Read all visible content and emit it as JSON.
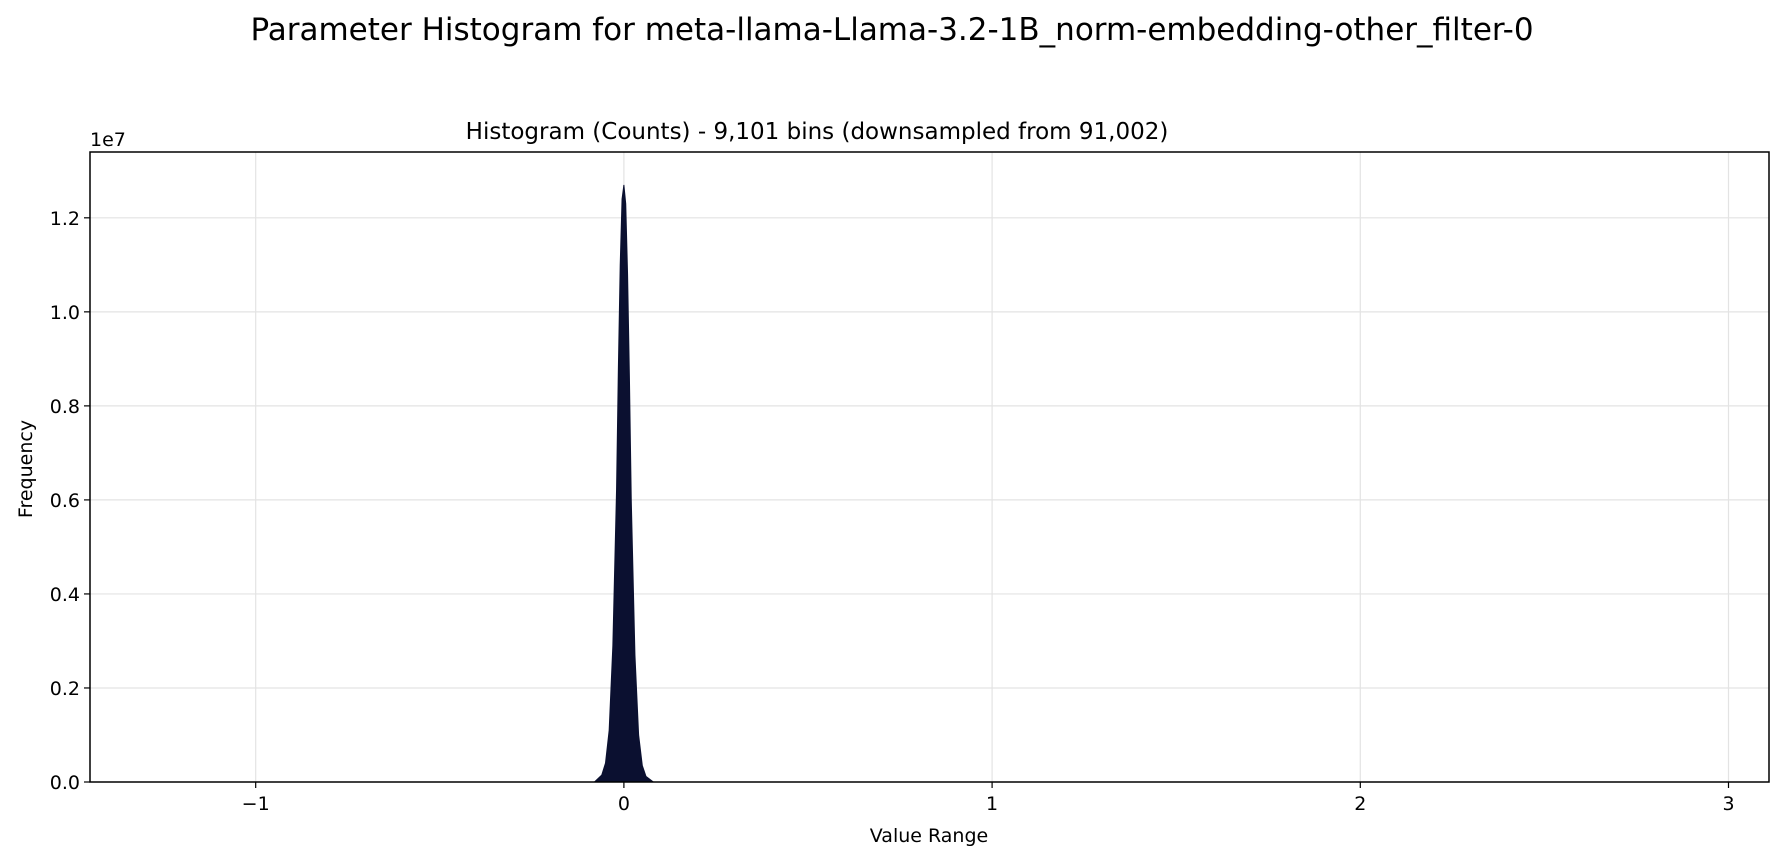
{
  "chart_data": {
    "type": "area",
    "suptitle": "Parameter Histogram for meta-llama-Llama-3.2-1B_norm-embedding-other_filter-0",
    "title": "Histogram (Counts) - 9,101 bins (downsampled from 91,002)",
    "xlabel": "Value Range",
    "ylabel": "Frequency",
    "y_offset_text": "1e7",
    "xlim": [
      -1.45,
      3.11
    ],
    "ylim": [
      0,
      13400000
    ],
    "x_ticks": [
      {
        "value": -1,
        "label": "−1"
      },
      {
        "value": 0,
        "label": "0"
      },
      {
        "value": 1,
        "label": "1"
      },
      {
        "value": 2,
        "label": "2"
      },
      {
        "value": 3,
        "label": "3"
      }
    ],
    "y_ticks": [
      {
        "value": 0,
        "label": "0.0"
      },
      {
        "value": 2000000,
        "label": "0.2"
      },
      {
        "value": 4000000,
        "label": "0.4"
      },
      {
        "value": 6000000,
        "label": "0.6"
      },
      {
        "value": 8000000,
        "label": "0.8"
      },
      {
        "value": 10000000,
        "label": "1.0"
      },
      {
        "value": 12000000,
        "label": "1.2"
      }
    ],
    "grid": true,
    "fill_color": "#0b1030",
    "series": [
      {
        "x": [
          -0.08,
          -0.06,
          -0.05,
          -0.04,
          -0.03,
          -0.02,
          -0.015,
          -0.01,
          -0.005,
          0.0,
          0.005,
          0.01,
          0.015,
          0.02,
          0.03,
          0.04,
          0.05,
          0.06,
          0.08
        ],
        "values": [
          0,
          150000,
          400000,
          1100000,
          2900000,
          6200000,
          8800000,
          11000000,
          12400000,
          12700000,
          12300000,
          10800000,
          8600000,
          6000000,
          2700000,
          1000000,
          350000,
          120000,
          0
        ]
      }
    ]
  }
}
